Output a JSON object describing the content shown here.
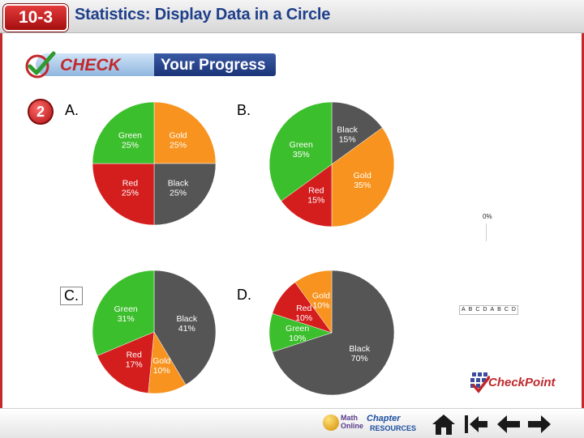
{
  "header": {
    "lesson_badge": "10-3",
    "lesson_title": "Statistics: Display Data in a Circle"
  },
  "banner": {
    "check_label": "CHECK",
    "progress_label": "Your Progress"
  },
  "question": {
    "number": "2"
  },
  "options": [
    {
      "label": "A.",
      "slices": [
        {
          "name": "Gold",
          "pct": 25,
          "pct_label": "25%",
          "color": "#f7931e"
        },
        {
          "name": "Black",
          "pct": 25,
          "pct_label": "25%",
          "color": "#555555"
        },
        {
          "name": "Red",
          "pct": 25,
          "pct_label": "25%",
          "color": "#d41e1e"
        },
        {
          "name": "Green",
          "pct": 25,
          "pct_label": "25%",
          "color": "#3cbf2c"
        }
      ]
    },
    {
      "label": "B.",
      "slices": [
        {
          "name": "Black",
          "pct": 15,
          "pct_label": "15%",
          "color": "#555555"
        },
        {
          "name": "Gold",
          "pct": 35,
          "pct_label": "35%",
          "color": "#f7931e"
        },
        {
          "name": "Red",
          "pct": 15,
          "pct_label": "15%",
          "color": "#d41e1e"
        },
        {
          "name": "Green",
          "pct": 35,
          "pct_label": "35%",
          "color": "#3cbf2c"
        }
      ]
    },
    {
      "label": "C.",
      "slices": [
        {
          "name": "Black",
          "pct": 41,
          "pct_label": "41%",
          "color": "#555555"
        },
        {
          "name": "Gold",
          "pct": 10,
          "pct_label": "10%",
          "color": "#f7931e"
        },
        {
          "name": "Red",
          "pct": 17,
          "pct_label": "17%",
          "color": "#d41e1e"
        },
        {
          "name": "Green",
          "pct": 31,
          "pct_label": "31%",
          "color": "#3cbf2c"
        }
      ]
    },
    {
      "label": "D.",
      "slices": [
        {
          "name": "Black",
          "pct": 70,
          "pct_label": "70%",
          "color": "#555555"
        },
        {
          "name": "Green",
          "pct": 10,
          "pct_label": "10%",
          "color": "#3cbf2c"
        },
        {
          "name": "Red",
          "pct": 10,
          "pct_label": "10%",
          "color": "#d41e1e"
        },
        {
          "name": "Gold",
          "pct": 10,
          "pct_label": "10%",
          "color": "#f7931e"
        }
      ]
    }
  ],
  "response_chart": {
    "zero_label": "0%",
    "answer_letters": [
      "A",
      "B",
      "C",
      "D",
      "A",
      "B",
      "C",
      "D"
    ]
  },
  "checkpoint_label": "CheckPoint",
  "bottom_nav": {
    "math_online": "Math Online",
    "chapter": "Chapter",
    "resources": "RESOURCES"
  },
  "chart_data": [
    {
      "type": "pie",
      "title": "A.",
      "categories": [
        "Gold",
        "Black",
        "Red",
        "Green"
      ],
      "values": [
        25,
        25,
        25,
        25
      ]
    },
    {
      "type": "pie",
      "title": "B.",
      "categories": [
        "Black",
        "Gold",
        "Red",
        "Green"
      ],
      "values": [
        15,
        35,
        15,
        35
      ]
    },
    {
      "type": "pie",
      "title": "C.",
      "categories": [
        "Black",
        "Gold",
        "Red",
        "Green"
      ],
      "values": [
        41,
        10,
        17,
        31
      ]
    },
    {
      "type": "pie",
      "title": "D.",
      "categories": [
        "Black",
        "Green",
        "Red",
        "Gold"
      ],
      "values": [
        70,
        10,
        10,
        10
      ]
    }
  ]
}
